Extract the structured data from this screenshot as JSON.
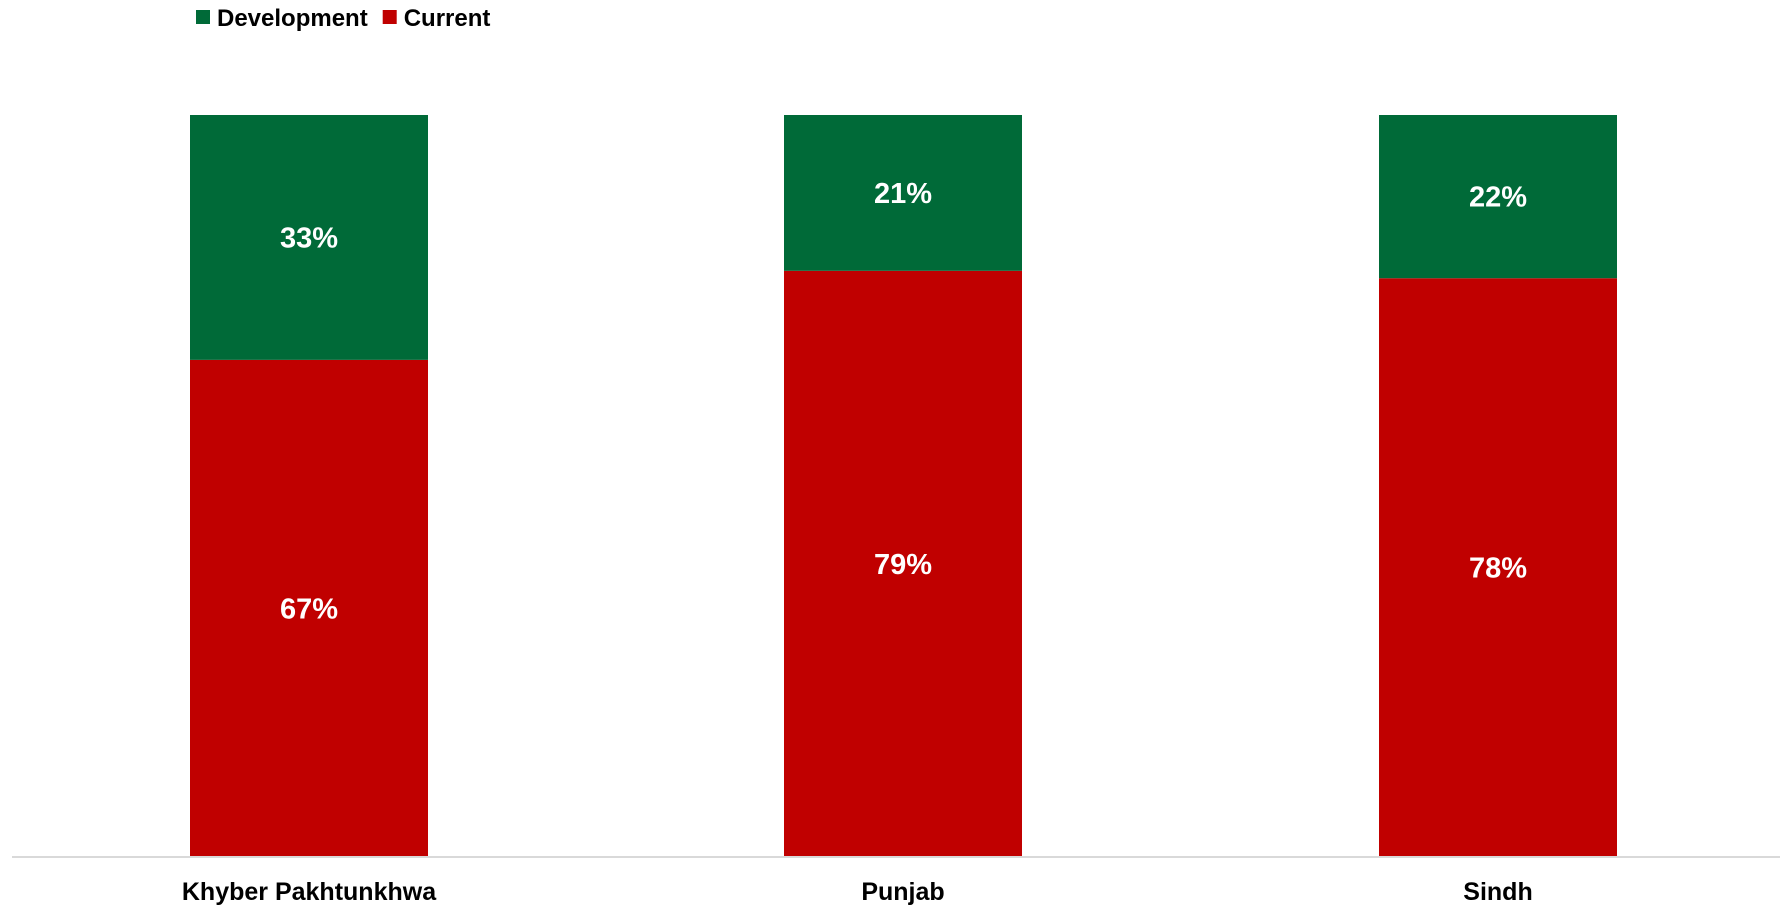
{
  "chart_data": {
    "type": "bar",
    "stacked": true,
    "percent_stacked": true,
    "categories": [
      "Khyber Pakhtunkhwa",
      "Punjab",
      "Sindh"
    ],
    "series": [
      {
        "name": "Current",
        "values": [
          67,
          79,
          78
        ],
        "color": "#C00000",
        "labels": [
          "67%",
          "79%",
          "78%"
        ]
      },
      {
        "name": "Development",
        "values": [
          33,
          21,
          22
        ],
        "color": "#006A38",
        "labels": [
          "33%",
          "21%",
          "22%"
        ]
      }
    ],
    "legend": {
      "position": "top-left",
      "entries": [
        {
          "name": "Development",
          "color": "#006A38"
        },
        {
          "name": "Current",
          "color": "#C00000"
        }
      ]
    },
    "ylim": [
      0,
      100
    ],
    "grid": false,
    "axis_color": "#D9D9D9"
  }
}
